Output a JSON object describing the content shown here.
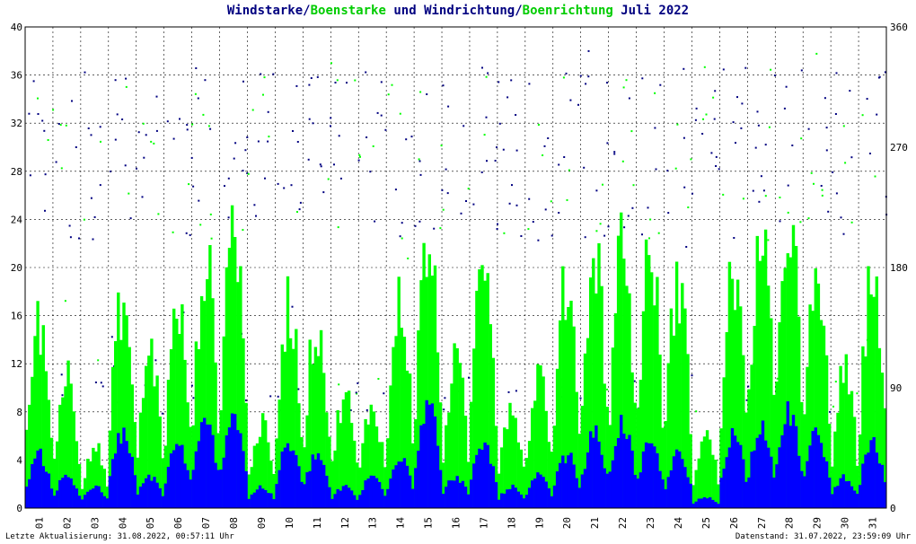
{
  "header": {
    "t1": "Windstarke",
    "t2": "/",
    "t3": "Boenstarke",
    "t4": " und ",
    "t5": "Windrichtung",
    "t6": "/",
    "t7": "Boenrichtung",
    "t8": " Juli 2022"
  },
  "footer": {
    "left": "Letzte Aktualisierung: 31.08.2022, 00:57:11 Uhr",
    "right": "Datenstand: 31.07.2022, 23:59:09 Uhr"
  },
  "colors": {
    "windstarke": "#0000ff",
    "boenstarke": "#00ff00",
    "windrichtung": "#000080",
    "boenrichtung": "#00ff00",
    "title_green": "#00cc00",
    "title_navy": "#000080"
  },
  "chart_data": {
    "type": "bar",
    "title": "Windstarke/Boenstarke und Windrichtung/Boenrichtung Juli 2022",
    "x_ticks": [
      "01",
      "02",
      "03",
      "04",
      "05",
      "06",
      "07",
      "08",
      "09",
      "10",
      "11",
      "12",
      "13",
      "14",
      "15",
      "16",
      "17",
      "18",
      "19",
      "20",
      "21",
      "22",
      "23",
      "24",
      "25",
      "26",
      "27",
      "28",
      "29",
      "30",
      "31"
    ],
    "y_left": {
      "ticks": [
        "0",
        "4",
        "8",
        "12",
        "16",
        "20",
        "24",
        "28",
        "32",
        "36",
        "40"
      ],
      "range": [
        0,
        40
      ]
    },
    "y_right": {
      "ticks": [
        "0",
        "90",
        "180",
        "270",
        "360"
      ],
      "range": [
        0,
        360
      ]
    },
    "grid": true,
    "series": [
      {
        "name": "Windstarke",
        "axis": "left",
        "daily_peak": [
          5,
          3,
          2,
          7,
          3,
          6,
          8,
          9,
          2,
          6,
          5,
          2,
          3,
          5,
          10,
          3,
          6,
          2,
          3,
          5,
          7,
          8,
          6,
          5,
          1,
          7,
          8,
          9,
          7,
          3,
          6
        ]
      },
      {
        "name": "Boenstarke",
        "axis": "left",
        "daily_peak": [
          18,
          13,
          6,
          20,
          15,
          19,
          24,
          28,
          8,
          20,
          18,
          11,
          10,
          20,
          26,
          14,
          26,
          10,
          13,
          22,
          25,
          26,
          25,
          22,
          7,
          23,
          27,
          29,
          22,
          13,
          23
        ]
      },
      {
        "name": "Windrichtung",
        "axis": "right",
        "typical_range": [
          200,
          320
        ]
      },
      {
        "name": "Boenrichtung",
        "axis": "right",
        "typical_range": [
          200,
          320
        ]
      }
    ]
  }
}
